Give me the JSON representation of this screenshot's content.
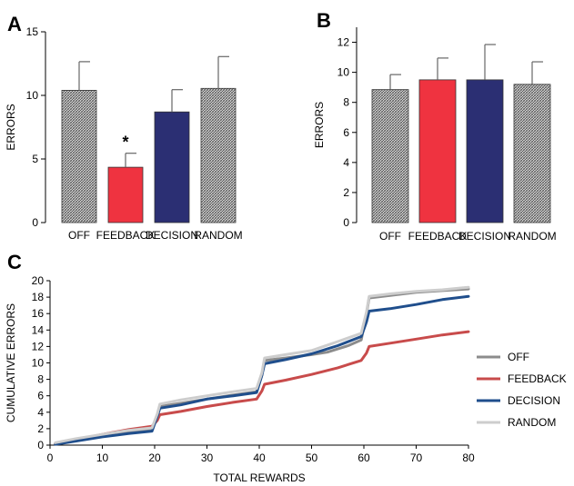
{
  "chart_data": [
    {
      "panel": "A",
      "type": "bar",
      "categories": [
        "OFF",
        "FEEDBACK",
        "DECISION",
        "RANDOM"
      ],
      "values": [
        10.4,
        4.35,
        8.7,
        10.55
      ],
      "errors": [
        2.25,
        1.1,
        1.75,
        2.5
      ],
      "annotations": [
        "",
        "*",
        "",
        ""
      ],
      "fills": [
        "hatch",
        "#ef3340",
        "#2b2f73",
        "hatch"
      ],
      "xlabel": "",
      "ylabel": "ERRORS",
      "ylim": [
        0,
        15
      ],
      "yticks": [
        0,
        5,
        10,
        15
      ],
      "grid": false
    },
    {
      "panel": "B",
      "type": "bar",
      "categories": [
        "OFF",
        "FEEDBACK",
        "DECISION",
        "RANDOM"
      ],
      "values": [
        8.85,
        9.5,
        9.5,
        9.2
      ],
      "errors": [
        1.0,
        1.45,
        2.35,
        1.5
      ],
      "fills": [
        "hatch",
        "#ef3340",
        "#2b2f73",
        "hatch"
      ],
      "xlabel": "",
      "ylabel": "ERRORS",
      "ylim": [
        0,
        13
      ],
      "yticks": [
        0,
        2,
        4,
        6,
        8,
        10,
        12
      ],
      "grid": false
    },
    {
      "panel": "C",
      "type": "line",
      "xlabel": "TOTAL REWARDS",
      "ylabel": "CUMULATIVE  ERRORS",
      "xlim": [
        0,
        80
      ],
      "ylim": [
        0,
        20
      ],
      "xticks": [
        0,
        10,
        20,
        30,
        40,
        50,
        60,
        70,
        80
      ],
      "yticks": [
        0,
        2,
        4,
        6,
        8,
        10,
        12,
        14,
        16,
        18,
        20
      ],
      "legend_position": "right",
      "grid": false,
      "series": [
        {
          "name": "OFF",
          "color": "#8c8c8c",
          "x": [
            1,
            5,
            10,
            15,
            19.5,
            20.5,
            21,
            25,
            30,
            35,
            39.5,
            40.5,
            41,
            45,
            50,
            53,
            55,
            57,
            59.5,
            60.5,
            61,
            65,
            70,
            75,
            80
          ],
          "y": [
            0.2,
            0.6,
            1.1,
            1.6,
            2.0,
            3.5,
            4.7,
            5.1,
            5.6,
            6.1,
            6.5,
            8.5,
            10.3,
            10.6,
            11.0,
            11.3,
            11.7,
            12.1,
            12.8,
            16.0,
            17.9,
            18.2,
            18.6,
            18.8,
            19.0
          ]
        },
        {
          "name": "FEEDBACK",
          "color": "#c84b4b",
          "x": [
            1,
            5,
            10,
            15,
            19.5,
            20.5,
            21,
            25,
            30,
            35,
            39.5,
            40.5,
            41,
            45,
            50,
            55,
            59.5,
            60.5,
            61,
            65,
            70,
            75,
            80
          ],
          "y": [
            0.2,
            0.7,
            1.3,
            1.9,
            2.3,
            3.0,
            3.7,
            4.1,
            4.7,
            5.2,
            5.6,
            6.6,
            7.4,
            7.9,
            8.6,
            9.4,
            10.3,
            11.2,
            12.0,
            12.4,
            12.9,
            13.4,
            13.8
          ]
        },
        {
          "name": "DECISION",
          "color": "#1f4e8c",
          "x": [
            1,
            5,
            10,
            15,
            19.5,
            20.5,
            21,
            25,
            30,
            35,
            39.5,
            40.5,
            41,
            45,
            50,
            55,
            59.5,
            60.5,
            61,
            65,
            70,
            75,
            80
          ],
          "y": [
            0.1,
            0.5,
            1.0,
            1.4,
            1.7,
            3.5,
            4.5,
            4.9,
            5.6,
            6.0,
            6.4,
            8.5,
            9.9,
            10.4,
            11.1,
            12.1,
            13.2,
            15.0,
            16.3,
            16.6,
            17.1,
            17.7,
            18.1
          ]
        },
        {
          "name": "RANDOM",
          "color": "#cdcdcd",
          "x": [
            1,
            5,
            10,
            15,
            19.5,
            20.5,
            21,
            25,
            30,
            35,
            39.5,
            40.5,
            41,
            45,
            50,
            55,
            59.5,
            60.5,
            61,
            65,
            70,
            75,
            80
          ],
          "y": [
            0.3,
            0.8,
            1.3,
            1.8,
            2.1,
            3.8,
            5.0,
            5.5,
            6.0,
            6.5,
            6.9,
            8.8,
            10.6,
            11.0,
            11.5,
            12.6,
            13.6,
            16.2,
            18.1,
            18.4,
            18.7,
            18.9,
            19.2
          ]
        }
      ]
    }
  ],
  "panel_labels": [
    "A",
    "B",
    "C"
  ]
}
